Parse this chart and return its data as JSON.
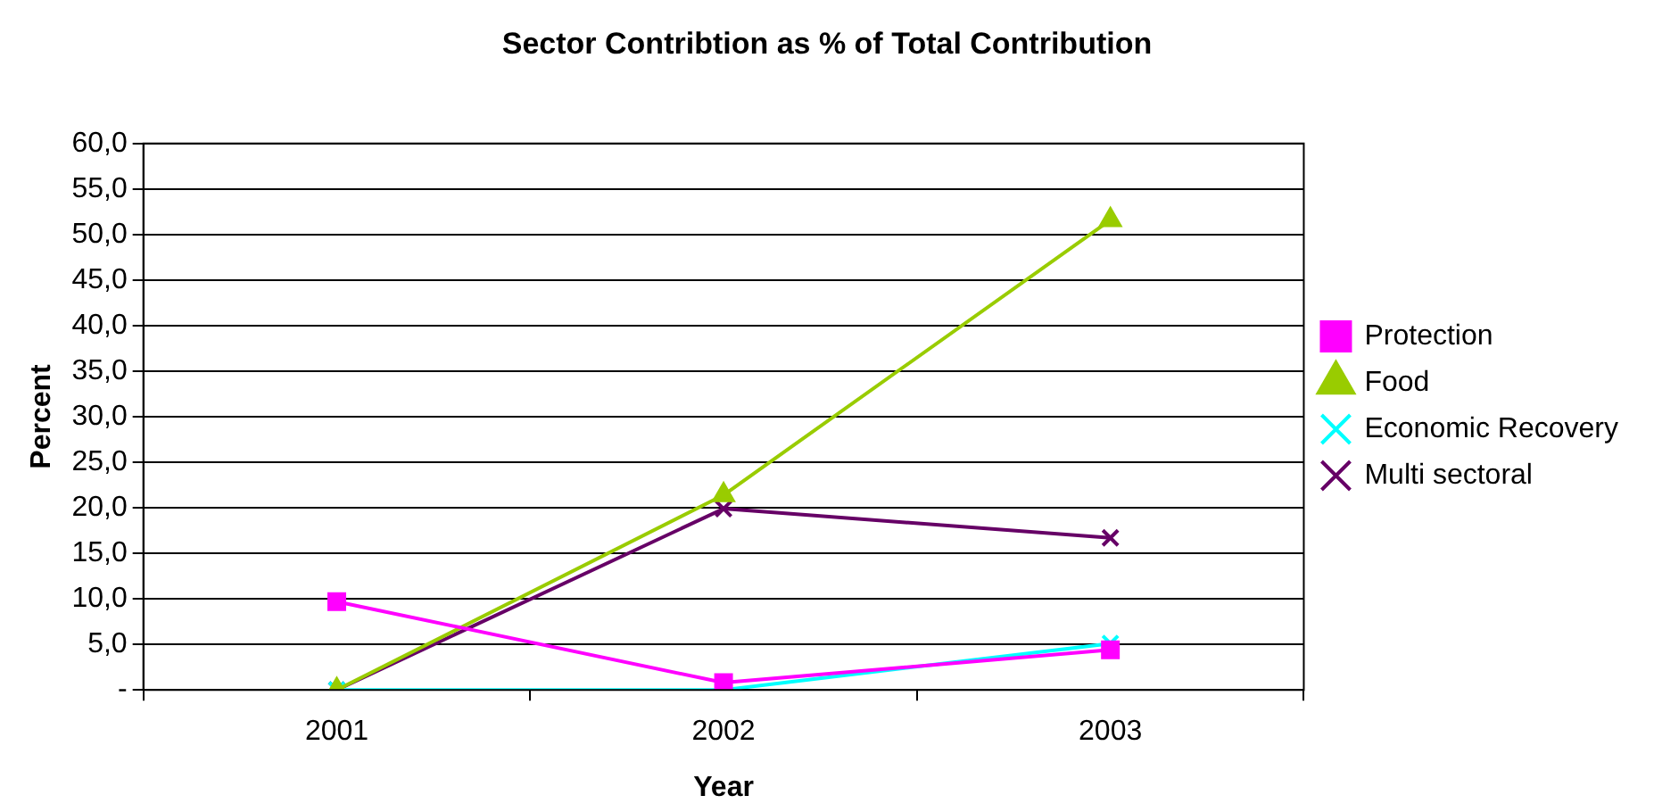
{
  "chart_data": {
    "type": "line",
    "title": "Sector Contribtion as % of Total Contribution",
    "xlabel": "Year",
    "ylabel": "Percent",
    "categories": [
      "2001",
      "2002",
      "2003"
    ],
    "series": [
      {
        "name": "Protection",
        "color": "#ff00ff",
        "marker": "square",
        "values": [
          9.7,
          0.8,
          4.4
        ]
      },
      {
        "name": "Food",
        "color": "#99cc00",
        "marker": "triangle",
        "values": [
          0,
          21.4,
          51.6
        ]
      },
      {
        "name": "Economic Recovery",
        "color": "#00ffff",
        "marker": "cross",
        "values": [
          0,
          0,
          5.1
        ]
      },
      {
        "name": "Multi sectoral",
        "color": "#660066",
        "marker": "cross",
        "values": [
          0,
          19.9,
          16.7
        ]
      }
    ],
    "ylim": [
      0,
      60
    ],
    "yticks": [
      {
        "value": 0,
        "label": "-"
      },
      {
        "value": 5,
        "label": "5,0"
      },
      {
        "value": 10,
        "label": "10,0"
      },
      {
        "value": 15,
        "label": "15,0"
      },
      {
        "value": 20,
        "label": "20,0"
      },
      {
        "value": 25,
        "label": "25,0"
      },
      {
        "value": 30,
        "label": "30,0"
      },
      {
        "value": 35,
        "label": "35,0"
      },
      {
        "value": 40,
        "label": "40,0"
      },
      {
        "value": 45,
        "label": "45,0"
      },
      {
        "value": 50,
        "label": "50,0"
      },
      {
        "value": 55,
        "label": "55,0"
      },
      {
        "value": 60,
        "label": "60,0"
      }
    ],
    "grid": "y",
    "legend": "right",
    "line_style": "solid"
  }
}
